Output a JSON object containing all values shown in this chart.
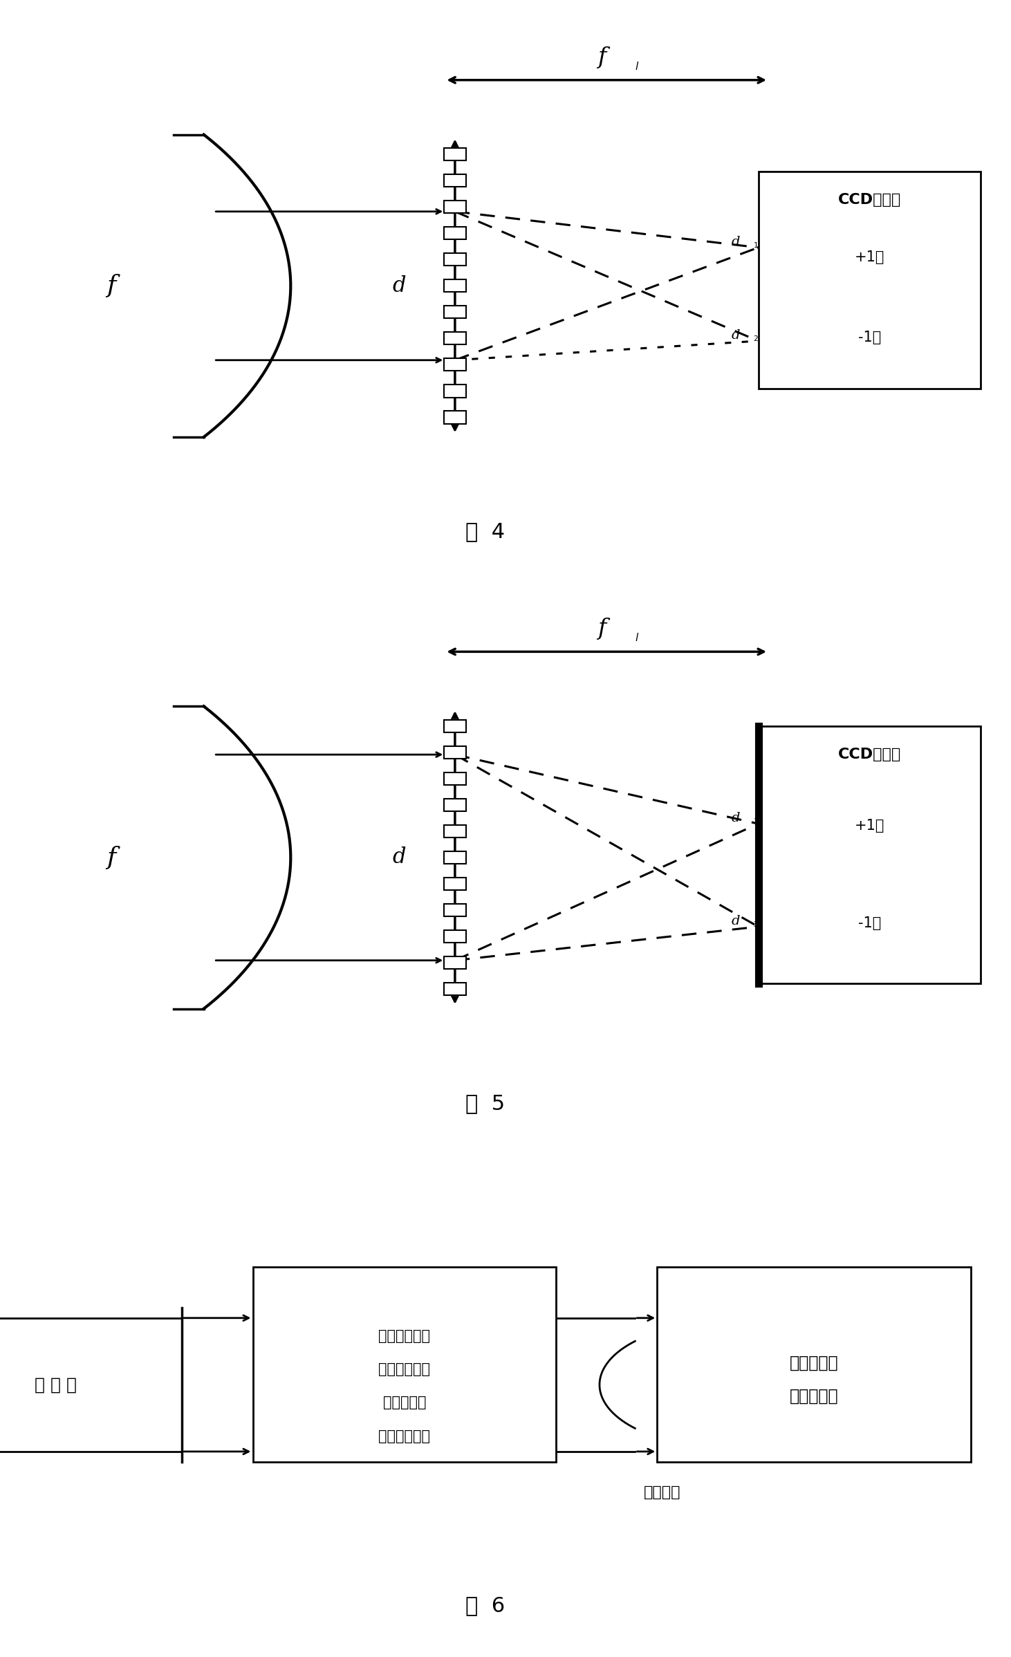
{
  "fig4_label": "图  4",
  "fig5_label": "图  5",
  "fig6_label": "图  6",
  "ccd_label": "CCD探测器",
  "plus1_label": "+1级",
  "minus1_label": "-1级",
  "f_label": "f",
  "fl_label": "f",
  "d_label": "d",
  "d1_label": "d",
  "d2_label": "d",
  "fig6_box1_line1": "待测器件（透",
  "fig6_box1_line2": "镜、反射球面",
  "fig6_box1_line3": "镜热透镜等",
  "fig6_box1_line4": "元件或原因）",
  "fig6_box2_line1": "光栅型波前",
  "fig6_box2_line2": "曲率传感器",
  "fig6_left_label": "参 考 光",
  "fig6_bottom_label": "散焦波前"
}
